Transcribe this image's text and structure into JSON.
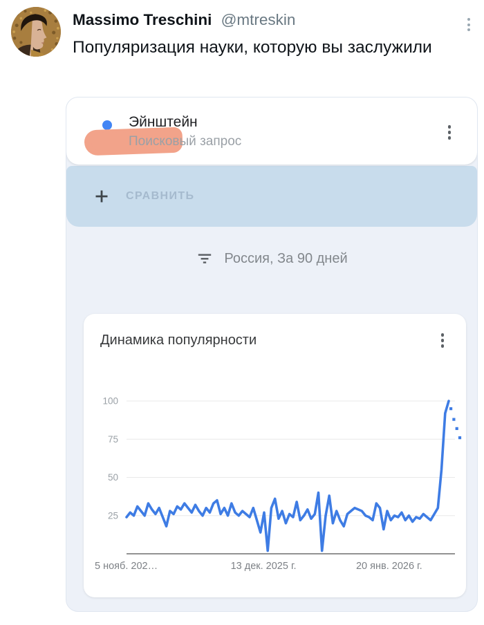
{
  "tweet": {
    "author": "Massimo Treschini",
    "handle": "@mtreskin",
    "body": "Популяризация науки, которую вы заслужили"
  },
  "trends": {
    "query_term": "Эйнштейн",
    "query_type": "Поисковый запрос",
    "compare": "СРАВНИТЬ",
    "filter": "Россия, За 90 дней"
  },
  "icons": {
    "tweet_menu": "kebab-menu",
    "query_menu": "kebab-menu",
    "chart_menu": "kebab-menu",
    "compare_plus": "plus",
    "filter": "filter-funnel-lines"
  },
  "colors": {
    "accent_blue": "#4285f4",
    "line_blue": "#3e7ce4",
    "compare_bar": "#c8dcec",
    "panel_background": "#edf1f8",
    "highlight_marker": "#f2a38a"
  },
  "chart_data": {
    "type": "line",
    "title": "Динамика популярности",
    "xlabel": "",
    "ylabel": "",
    "ylim": [
      0,
      100
    ],
    "yticks": [
      100,
      75,
      50,
      25
    ],
    "grid": true,
    "legend": "none",
    "line_color": "#3e7ce4",
    "grid_color": "#e8e8e8",
    "axis_color": "#6f6f6f",
    "tick_label_color": "#9aa0a6",
    "x_label_color": "#7d8186",
    "xticks": [
      {
        "label": "5 нояб. 202…",
        "pos": 0
      },
      {
        "label": "13 дек. 2025 г.",
        "pos": 0.425
      },
      {
        "label": "20 янв. 2026 г.",
        "pos": 0.815
      }
    ],
    "series": [
      {
        "name": "Эйнштейн",
        "values": [
          24,
          27,
          25,
          31,
          28,
          25,
          33,
          29,
          26,
          30,
          24,
          18,
          28,
          26,
          31,
          29,
          33,
          30,
          27,
          32,
          28,
          25,
          30,
          27,
          33,
          35,
          26,
          30,
          25,
          33,
          27,
          25,
          28,
          26,
          24,
          30,
          22,
          14,
          27,
          2,
          30,
          36,
          23,
          28,
          20,
          26,
          24,
          34,
          22,
          25,
          29,
          23,
          26,
          40,
          2,
          25,
          38,
          20,
          28,
          22,
          18,
          26,
          28,
          30,
          29,
          28,
          25,
          24,
          22,
          33,
          30,
          16,
          28,
          22,
          25,
          24,
          27,
          22,
          25,
          21,
          24,
          23,
          26,
          24,
          22,
          26,
          30,
          55,
          92,
          100
        ]
      }
    ],
    "incomplete_tail_values": [
      95,
      88,
      82,
      76
    ]
  }
}
